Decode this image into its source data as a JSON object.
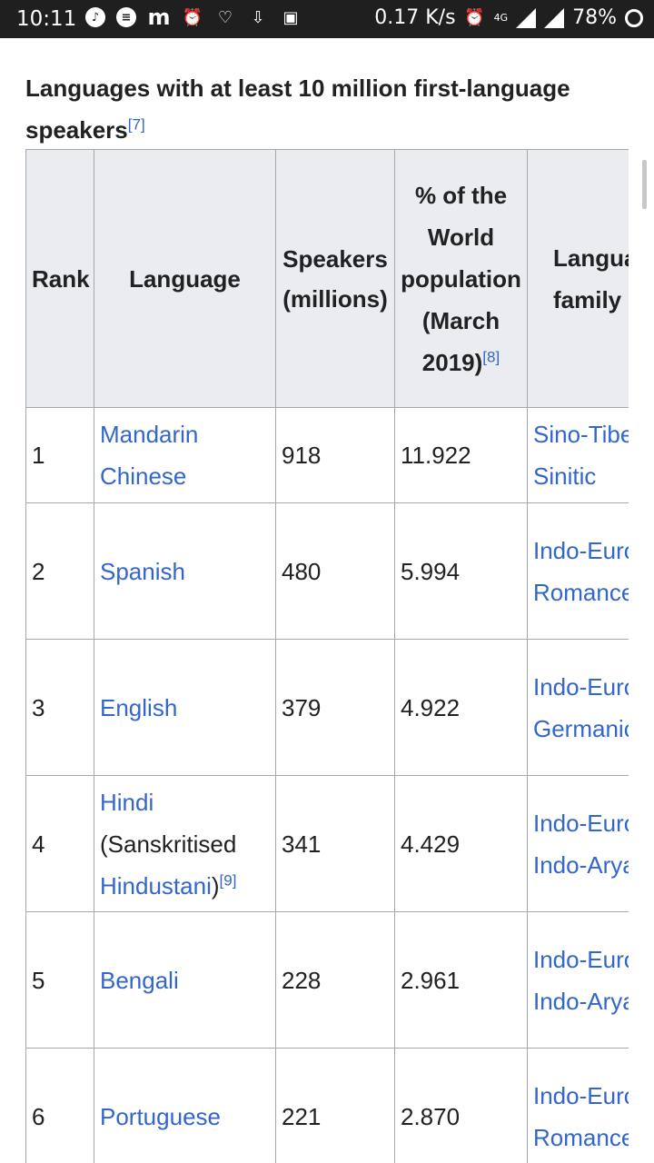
{
  "status_bar": {
    "time": "10:11",
    "app_icon_m": "m",
    "net_speed": "0.17 K/s",
    "network_type": "4G",
    "battery": "78%"
  },
  "caption": {
    "title": "Languages with at least 10 million first-language speakers",
    "ref": "[7]"
  },
  "table": {
    "headers": {
      "rank": "Rank",
      "language": "Language",
      "speakers": "Speakers (millions)",
      "percent": "% of the World population",
      "percent_note": "(March 2019)",
      "percent_ref": "[8]",
      "family": "Language family Branch"
    },
    "rows": [
      {
        "rank": "1",
        "language": "Mandarin Chinese",
        "speakers": "918",
        "percent": "11.922",
        "family": "Sino-Tibetan",
        "branch": "Sinitic"
      },
      {
        "rank": "2",
        "language": "Spanish",
        "speakers": "480",
        "percent": "5.994",
        "family": "Indo-European",
        "branch": "Romance"
      },
      {
        "rank": "3",
        "language": "English",
        "speakers": "379",
        "percent": "4.922",
        "family": "Indo-European",
        "branch": "Germanic"
      },
      {
        "rank": "4",
        "language": "Hindi",
        "language_note": "(Sanskritised",
        "language_link2": "Hindustani",
        "language_ref": "[9]",
        "speakers": "341",
        "percent": "4.429",
        "family": "Indo-European",
        "branch": "Indo-Aryan"
      },
      {
        "rank": "5",
        "language": "Bengali",
        "speakers": "228",
        "percent": "2.961",
        "family": "Indo-European",
        "branch": "Indo-Aryan"
      },
      {
        "rank": "6",
        "language": "Portuguese",
        "speakers": "221",
        "percent": "2.870",
        "family": "Indo-European",
        "branch": "Romance"
      }
    ]
  },
  "colors": {
    "link": "#3366cc",
    "header_bg": "#eaecf0",
    "border": "#a2a9b1",
    "status_bar_bg": "#1f1f1f"
  }
}
